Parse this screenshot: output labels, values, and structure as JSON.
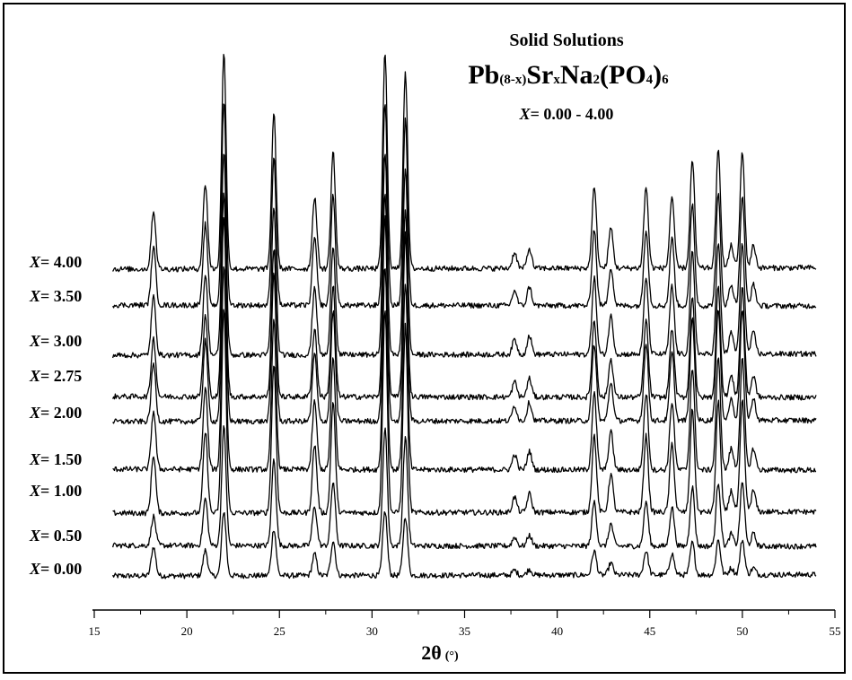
{
  "chart_data": {
    "type": "line",
    "title": "Solid Solutions",
    "formula": {
      "parts": [
        {
          "t": "Pb",
          "sub": false
        },
        {
          "t": "(8-x)",
          "sub": true
        },
        {
          "t": "Sr",
          "sub": false
        },
        {
          "t": "x",
          "sub": true
        },
        {
          "t": "Na",
          "sub": false
        },
        {
          "t": "2",
          "sub": true
        },
        {
          "t": "(PO",
          "sub": false
        },
        {
          "t": "4",
          "sub": true
        },
        {
          "t": ")",
          "sub": false
        },
        {
          "t": "6",
          "sub": true
        }
      ]
    },
    "subtitle_var": "X",
    "subtitle_rest": "= 0.00 - 4.00",
    "xlabel_main": "2θ",
    "xlabel_unit": "(°)",
    "xlim": [
      15,
      55
    ],
    "xticks": [
      15,
      20,
      25,
      30,
      35,
      40,
      45,
      50,
      55
    ],
    "grid": false,
    "series": [
      {
        "name": "X= 0.00",
        "label_var": "X",
        "label_rest": "= 0.00",
        "values": {
          "amp": 0.3
        }
      },
      {
        "name": "X= 0.50",
        "label_var": "X",
        "label_rest": "= 0.50",
        "values": {
          "amp": 0.55
        }
      },
      {
        "name": "X= 1.00",
        "label_var": "X",
        "label_rest": "= 1.00",
        "values": {
          "amp": 0.95
        }
      },
      {
        "name": "X= 1.50",
        "label_var": "X",
        "label_rest": "= 1.50",
        "values": {
          "amp": 0.95
        }
      },
      {
        "name": "X= 2.00",
        "label_var": "X",
        "label_rest": "= 2.00",
        "values": {
          "amp": 0.95
        }
      },
      {
        "name": "X= 2.75",
        "label_var": "X",
        "label_rest": "= 2.75",
        "values": {
          "amp": 0.95
        }
      },
      {
        "name": "X= 3.00",
        "label_var": "X",
        "label_rest": "= 3.00",
        "values": {
          "amp": 0.95
        }
      },
      {
        "name": "X= 3.50",
        "label_var": "X",
        "label_rest": "= 3.50",
        "values": {
          "amp": 0.95
        }
      },
      {
        "name": "X= 4.00",
        "label_var": "X",
        "label_rest": "= 4.00",
        "values": {
          "amp": 1.0
        }
      }
    ],
    "peaks_2theta": [
      {
        "x": 18.2,
        "h": 0.65
      },
      {
        "x": 21.0,
        "h": 0.95
      },
      {
        "x": 22.0,
        "h": 2.4
      },
      {
        "x": 24.7,
        "h": 1.75
      },
      {
        "x": 26.9,
        "h": 0.8
      },
      {
        "x": 27.9,
        "h": 1.3
      },
      {
        "x": 30.7,
        "h": 2.4
      },
      {
        "x": 31.8,
        "h": 2.2
      },
      {
        "x": 37.7,
        "h": 0.18
      },
      {
        "x": 38.5,
        "h": 0.22
      },
      {
        "x": 42.0,
        "h": 0.9
      },
      {
        "x": 42.9,
        "h": 0.45
      },
      {
        "x": 44.8,
        "h": 0.9
      },
      {
        "x": 46.2,
        "h": 0.8
      },
      {
        "x": 47.3,
        "h": 1.2
      },
      {
        "x": 48.7,
        "h": 1.3
      },
      {
        "x": 50.0,
        "h": 1.3
      },
      {
        "x": 49.4,
        "h": 0.25
      },
      {
        "x": 50.6,
        "h": 0.25
      }
    ]
  }
}
